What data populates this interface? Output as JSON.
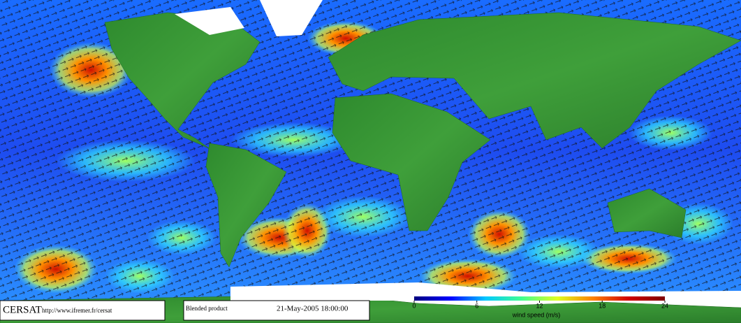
{
  "footer": {
    "logo": "CERSAT",
    "url": "http://www.ifremer.fr/cersat",
    "product": "Blended product",
    "timestamp": "21-May-2005 18:00:00"
  },
  "colorbar": {
    "label": "wind speed (m/s)",
    "range": [
      0,
      24
    ],
    "ticks": [
      0,
      6,
      12,
      18,
      24
    ],
    "colors": [
      "#00007f",
      "#0000ff",
      "#00c8ff",
      "#40ff90",
      "#e0ff20",
      "#ff8000",
      "#d00000",
      "#800000"
    ]
  }
}
